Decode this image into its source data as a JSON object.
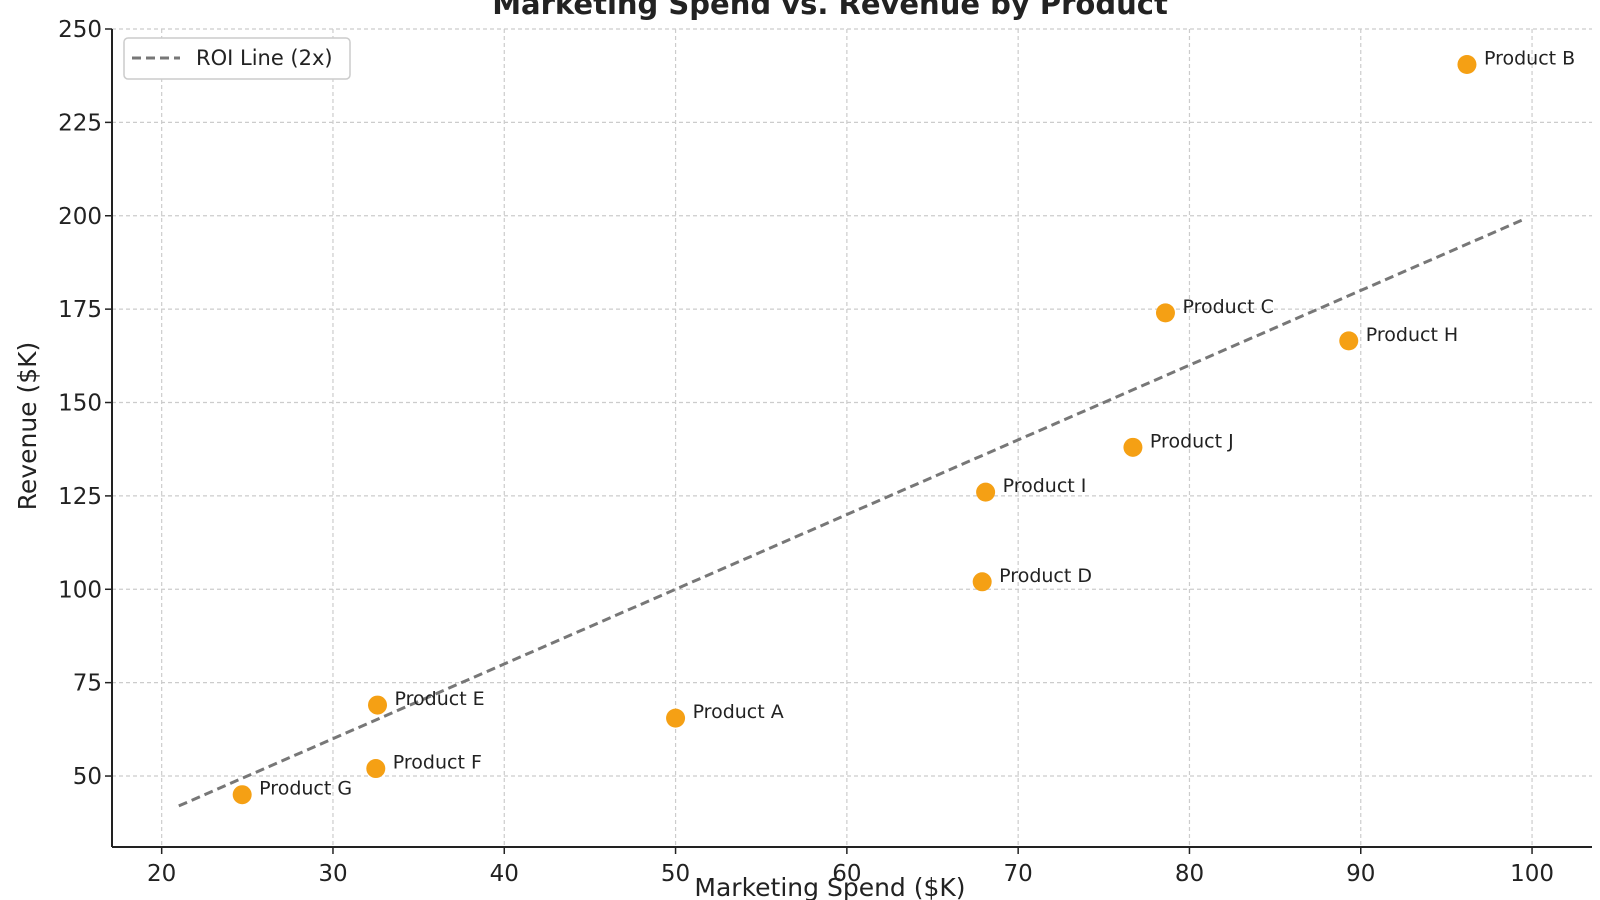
{
  "chart_data": {
    "type": "scatter",
    "title": "Marketing Spend vs. Revenue by Product",
    "xlabel": "Marketing Spend ($K)",
    "ylabel": "Revenue ($K)",
    "xlim": [
      17.1,
      103.5
    ],
    "ylim": [
      31,
      250
    ],
    "xticks": [
      20,
      30,
      40,
      50,
      60,
      70,
      80,
      90,
      100
    ],
    "yticks": [
      50,
      75,
      100,
      125,
      150,
      175,
      200,
      225,
      250
    ],
    "grid": true,
    "legend_position": "top-left",
    "point_color": "#f5a014",
    "points": [
      {
        "label": "Product A",
        "x": 50.0,
        "y": 65.5
      },
      {
        "label": "Product B",
        "x": 96.2,
        "y": 240.5
      },
      {
        "label": "Product C",
        "x": 78.6,
        "y": 174.0
      },
      {
        "label": "Product D",
        "x": 67.9,
        "y": 102.0
      },
      {
        "label": "Product E",
        "x": 32.6,
        "y": 69.0
      },
      {
        "label": "Product F",
        "x": 32.5,
        "y": 52.0
      },
      {
        "label": "Product G",
        "x": 24.7,
        "y": 45.0
      },
      {
        "label": "Product H",
        "x": 89.3,
        "y": 166.5
      },
      {
        "label": "Product I",
        "x": 68.1,
        "y": 126.0
      },
      {
        "label": "Product J",
        "x": 76.7,
        "y": 138.0
      }
    ],
    "reference_line": {
      "name": "ROI Line (2x)",
      "x": [
        21,
        99.6
      ],
      "y": [
        42,
        199.2
      ],
      "color": "#777777",
      "style": "dashed"
    }
  }
}
